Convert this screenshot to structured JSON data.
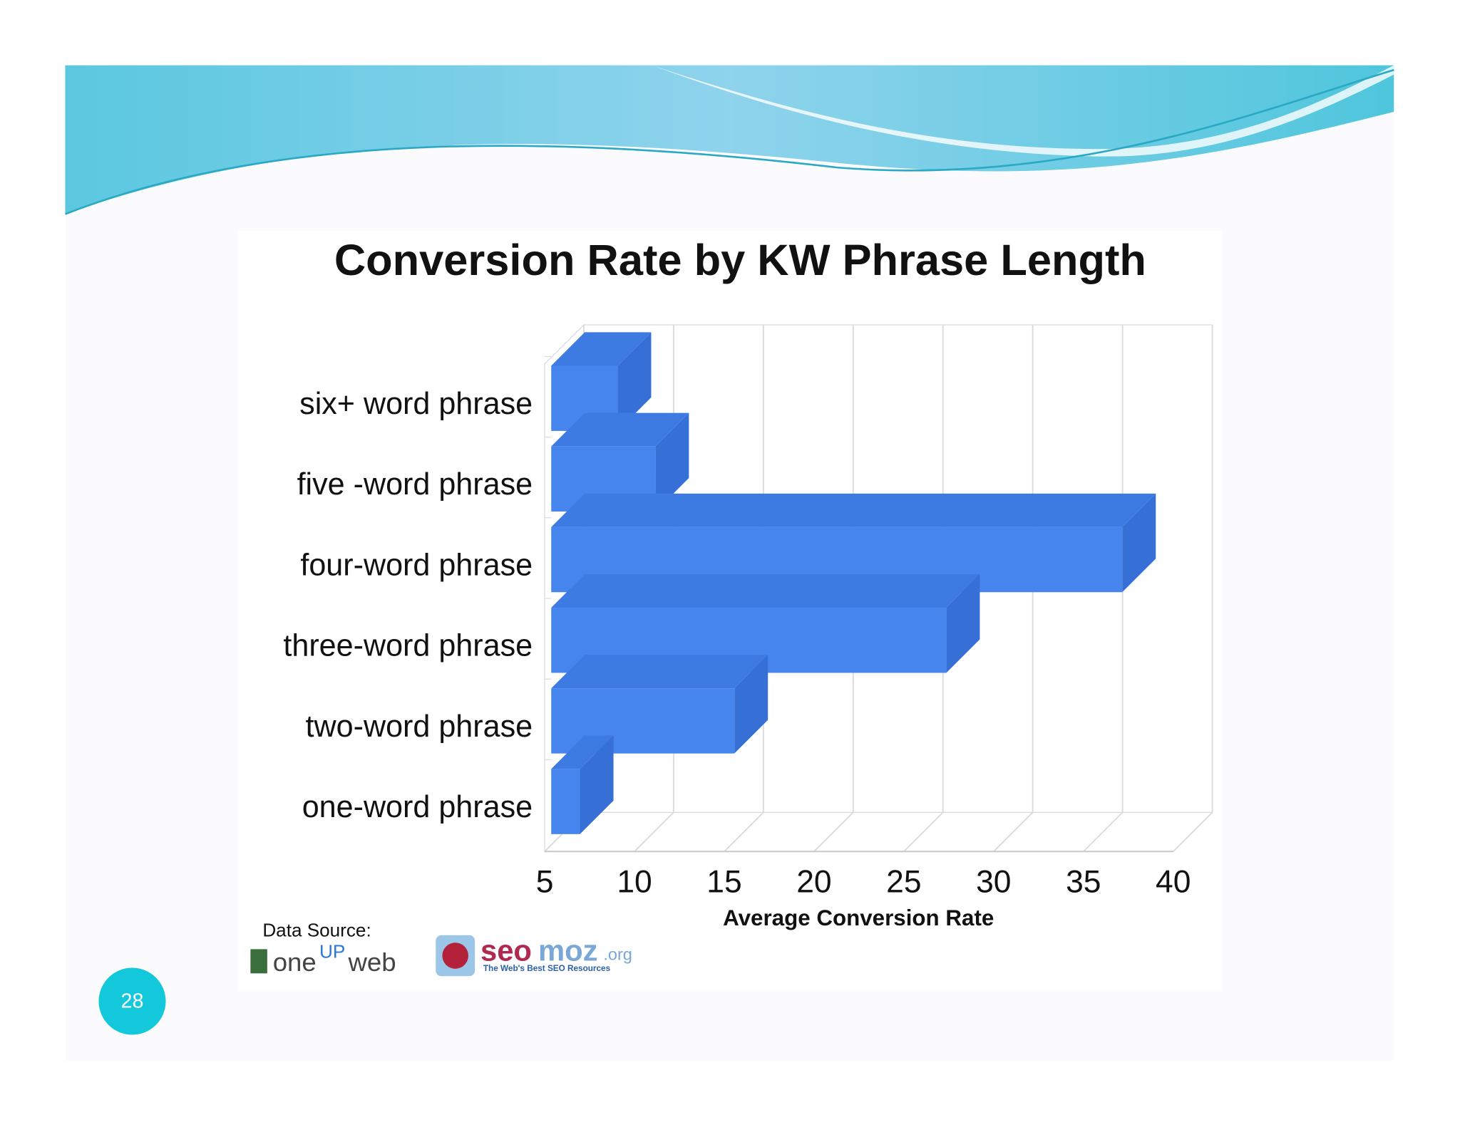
{
  "chart_data": {
    "type": "bar3d",
    "orientation": "horizontal",
    "title": "Conversion Rate by KW Phrase Length",
    "categories": [
      "six+ word phrase",
      "five -word phrase",
      "four-word phrase",
      "three-word phrase",
      "two-word phrase",
      "one-word phrase"
    ],
    "values": [
      8.7,
      10.8,
      36.8,
      27,
      15.2,
      6.6
    ],
    "color": "#4684ee",
    "xlabel": "Average Conversion Rate",
    "xlim": [
      5,
      40
    ],
    "xticks": [
      5,
      10,
      15,
      20,
      25,
      30,
      35,
      40
    ],
    "grid": true
  },
  "source": {
    "label": "Data Source:",
    "oneupweb": [
      "one",
      "UP",
      "web"
    ],
    "seomoz": [
      "seo",
      "moz",
      ".org"
    ],
    "seomoz_tagline": "The Web's Best SEO Resources"
  },
  "slide_number": "28"
}
